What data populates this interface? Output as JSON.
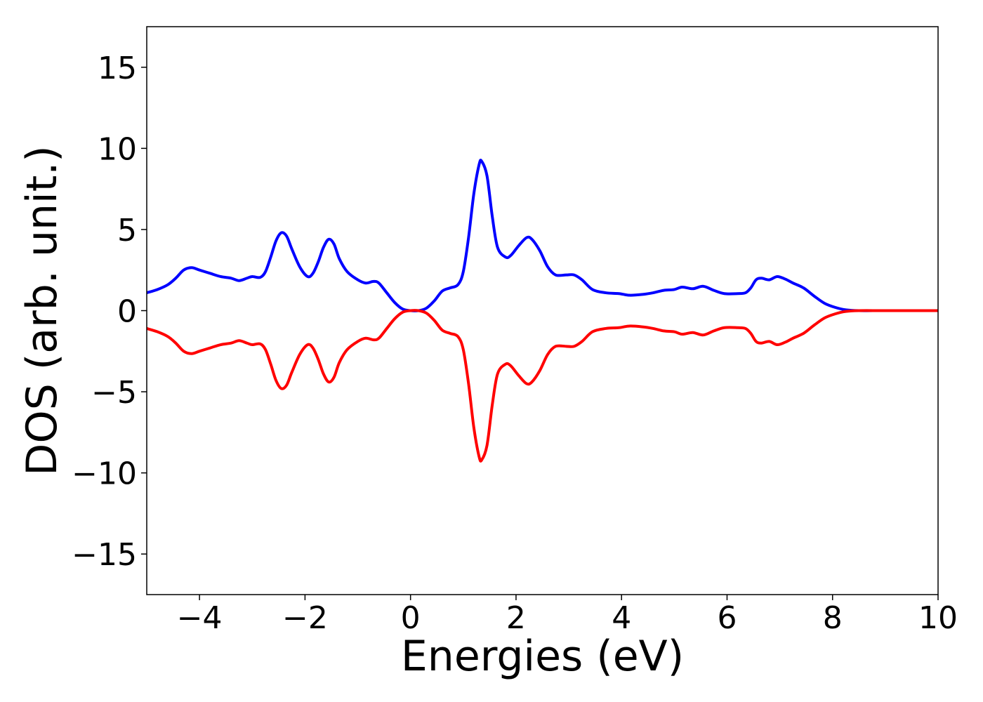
{
  "chart_data": {
    "type": "line",
    "title": "",
    "xlabel": "Energies (eV)",
    "ylabel": "DOS (arb. unit.)",
    "xlim": [
      -5,
      10
    ],
    "ylim": [
      -17.5,
      17.5
    ],
    "xticks": [
      -4,
      -2,
      0,
      2,
      4,
      6,
      8,
      10
    ],
    "xtick_labels": [
      "−4",
      "−2",
      "0",
      "2",
      "4",
      "6",
      "8",
      "10"
    ],
    "yticks": [
      -15,
      -10,
      -5,
      0,
      5,
      10,
      15
    ],
    "ytick_labels": [
      "−15",
      "−10",
      "−5",
      "0",
      "5",
      "10",
      "15"
    ],
    "grid": false,
    "legend": "none",
    "series": [
      {
        "color": "#0000ff",
        "points": [
          [
            -5.0,
            1.1
          ],
          [
            -4.8,
            1.3
          ],
          [
            -4.6,
            1.6
          ],
          [
            -4.45,
            2.0
          ],
          [
            -4.3,
            2.5
          ],
          [
            -4.15,
            2.65
          ],
          [
            -4.0,
            2.5
          ],
          [
            -3.8,
            2.3
          ],
          [
            -3.6,
            2.1
          ],
          [
            -3.4,
            2.0
          ],
          [
            -3.25,
            1.85
          ],
          [
            -3.1,
            2.0
          ],
          [
            -3.0,
            2.1
          ],
          [
            -2.85,
            2.05
          ],
          [
            -2.75,
            2.4
          ],
          [
            -2.65,
            3.3
          ],
          [
            -2.55,
            4.3
          ],
          [
            -2.45,
            4.8
          ],
          [
            -2.35,
            4.6
          ],
          [
            -2.25,
            3.8
          ],
          [
            -2.1,
            2.7
          ],
          [
            -1.95,
            2.1
          ],
          [
            -1.85,
            2.3
          ],
          [
            -1.75,
            3.0
          ],
          [
            -1.65,
            3.9
          ],
          [
            -1.55,
            4.4
          ],
          [
            -1.45,
            4.1
          ],
          [
            -1.35,
            3.2
          ],
          [
            -1.2,
            2.4
          ],
          [
            -1.0,
            1.9
          ],
          [
            -0.85,
            1.7
          ],
          [
            -0.7,
            1.8
          ],
          [
            -0.6,
            1.7
          ],
          [
            -0.45,
            1.1
          ],
          [
            -0.3,
            0.5
          ],
          [
            -0.15,
            0.1
          ],
          [
            0.0,
            0.0
          ],
          [
            0.15,
            0.0
          ],
          [
            0.3,
            0.15
          ],
          [
            0.45,
            0.6
          ],
          [
            0.6,
            1.2
          ],
          [
            0.75,
            1.4
          ],
          [
            0.9,
            1.6
          ],
          [
            1.0,
            2.4
          ],
          [
            1.1,
            4.5
          ],
          [
            1.2,
            7.2
          ],
          [
            1.3,
            9.0
          ],
          [
            1.35,
            9.2
          ],
          [
            1.45,
            8.3
          ],
          [
            1.55,
            5.8
          ],
          [
            1.65,
            3.9
          ],
          [
            1.8,
            3.3
          ],
          [
            1.9,
            3.4
          ],
          [
            2.05,
            4.0
          ],
          [
            2.2,
            4.5
          ],
          [
            2.3,
            4.4
          ],
          [
            2.45,
            3.7
          ],
          [
            2.6,
            2.7
          ],
          [
            2.75,
            2.2
          ],
          [
            2.95,
            2.2
          ],
          [
            3.1,
            2.2
          ],
          [
            3.25,
            1.9
          ],
          [
            3.45,
            1.3
          ],
          [
            3.7,
            1.1
          ],
          [
            3.95,
            1.05
          ],
          [
            4.15,
            0.95
          ],
          [
            4.4,
            1.0
          ],
          [
            4.6,
            1.1
          ],
          [
            4.8,
            1.25
          ],
          [
            5.0,
            1.3
          ],
          [
            5.15,
            1.45
          ],
          [
            5.35,
            1.35
          ],
          [
            5.55,
            1.5
          ],
          [
            5.75,
            1.25
          ],
          [
            5.95,
            1.05
          ],
          [
            6.2,
            1.05
          ],
          [
            6.35,
            1.1
          ],
          [
            6.45,
            1.4
          ],
          [
            6.55,
            1.9
          ],
          [
            6.65,
            2.0
          ],
          [
            6.8,
            1.9
          ],
          [
            6.95,
            2.1
          ],
          [
            7.1,
            1.95
          ],
          [
            7.25,
            1.7
          ],
          [
            7.45,
            1.4
          ],
          [
            7.65,
            0.9
          ],
          [
            7.85,
            0.45
          ],
          [
            8.05,
            0.2
          ],
          [
            8.25,
            0.05
          ],
          [
            8.5,
            0.0
          ],
          [
            9.0,
            0.0
          ],
          [
            10.0,
            0.0
          ]
        ]
      },
      {
        "color": "#ff0000",
        "points": [
          [
            -5.0,
            -1.1
          ],
          [
            -4.8,
            -1.3
          ],
          [
            -4.6,
            -1.6
          ],
          [
            -4.45,
            -2.0
          ],
          [
            -4.3,
            -2.5
          ],
          [
            -4.15,
            -2.65
          ],
          [
            -4.0,
            -2.5
          ],
          [
            -3.8,
            -2.3
          ],
          [
            -3.6,
            -2.1
          ],
          [
            -3.4,
            -2.0
          ],
          [
            -3.25,
            -1.85
          ],
          [
            -3.1,
            -2.0
          ],
          [
            -3.0,
            -2.1
          ],
          [
            -2.85,
            -2.05
          ],
          [
            -2.75,
            -2.4
          ],
          [
            -2.65,
            -3.3
          ],
          [
            -2.55,
            -4.3
          ],
          [
            -2.45,
            -4.8
          ],
          [
            -2.35,
            -4.6
          ],
          [
            -2.25,
            -3.8
          ],
          [
            -2.1,
            -2.7
          ],
          [
            -1.95,
            -2.1
          ],
          [
            -1.85,
            -2.3
          ],
          [
            -1.75,
            -3.0
          ],
          [
            -1.65,
            -3.9
          ],
          [
            -1.55,
            -4.4
          ],
          [
            -1.45,
            -4.1
          ],
          [
            -1.35,
            -3.2
          ],
          [
            -1.2,
            -2.4
          ],
          [
            -1.0,
            -1.9
          ],
          [
            -0.85,
            -1.7
          ],
          [
            -0.7,
            -1.8
          ],
          [
            -0.6,
            -1.7
          ],
          [
            -0.45,
            -1.1
          ],
          [
            -0.3,
            -0.5
          ],
          [
            -0.15,
            -0.1
          ],
          [
            0.0,
            0.0
          ],
          [
            0.15,
            0.0
          ],
          [
            0.3,
            -0.15
          ],
          [
            0.45,
            -0.6
          ],
          [
            0.6,
            -1.2
          ],
          [
            0.75,
            -1.4
          ],
          [
            0.9,
            -1.6
          ],
          [
            1.0,
            -2.4
          ],
          [
            1.1,
            -4.5
          ],
          [
            1.2,
            -7.2
          ],
          [
            1.3,
            -9.0
          ],
          [
            1.35,
            -9.2
          ],
          [
            1.45,
            -8.3
          ],
          [
            1.55,
            -5.8
          ],
          [
            1.65,
            -3.9
          ],
          [
            1.8,
            -3.3
          ],
          [
            1.9,
            -3.4
          ],
          [
            2.05,
            -4.0
          ],
          [
            2.2,
            -4.5
          ],
          [
            2.3,
            -4.4
          ],
          [
            2.45,
            -3.7
          ],
          [
            2.6,
            -2.7
          ],
          [
            2.75,
            -2.2
          ],
          [
            2.95,
            -2.2
          ],
          [
            3.1,
            -2.2
          ],
          [
            3.25,
            -1.9
          ],
          [
            3.45,
            -1.3
          ],
          [
            3.7,
            -1.1
          ],
          [
            3.95,
            -1.05
          ],
          [
            4.15,
            -0.95
          ],
          [
            4.4,
            -1.0
          ],
          [
            4.6,
            -1.1
          ],
          [
            4.8,
            -1.25
          ],
          [
            5.0,
            -1.3
          ],
          [
            5.15,
            -1.45
          ],
          [
            5.35,
            -1.35
          ],
          [
            5.55,
            -1.5
          ],
          [
            5.75,
            -1.25
          ],
          [
            5.95,
            -1.05
          ],
          [
            6.2,
            -1.05
          ],
          [
            6.35,
            -1.1
          ],
          [
            6.45,
            -1.4
          ],
          [
            6.55,
            -1.9
          ],
          [
            6.65,
            -2.0
          ],
          [
            6.8,
            -1.9
          ],
          [
            6.95,
            -2.1
          ],
          [
            7.1,
            -1.95
          ],
          [
            7.25,
            -1.7
          ],
          [
            7.45,
            -1.4
          ],
          [
            7.65,
            -0.9
          ],
          [
            7.85,
            -0.45
          ],
          [
            8.05,
            -0.2
          ],
          [
            8.25,
            -0.05
          ],
          [
            8.5,
            0.0
          ],
          [
            9.0,
            0.0
          ],
          [
            10.0,
            0.0
          ]
        ]
      }
    ]
  }
}
